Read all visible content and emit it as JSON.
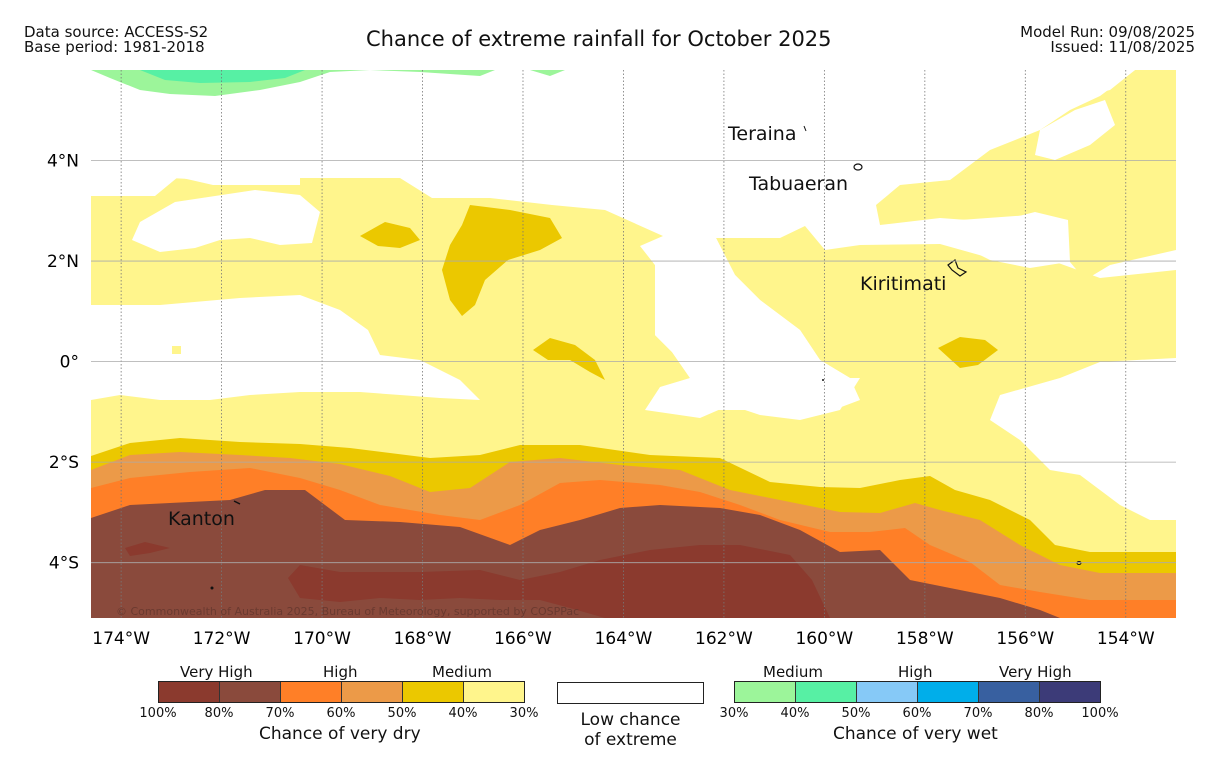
{
  "header": {
    "data_source": "Data source: ACCESS-S2",
    "base_period": "Base period: 1981-2018",
    "title": "Chance of extreme rainfall for October 2025",
    "model_run": "Model Run: 09/08/2025",
    "issued": "Issued: 11/08/2025"
  },
  "map": {
    "lon_range": [
      -174.6,
      -153
    ],
    "lat_range": [
      -5.1,
      5.8
    ],
    "lon_ticks": [
      "174°W",
      "172°W",
      "170°W",
      "168°W",
      "166°W",
      "164°W",
      "162°W",
      "160°W",
      "158°W",
      "156°W",
      "154°W"
    ],
    "lon_values": [
      -174,
      -172,
      -170,
      -168,
      -166,
      -164,
      -162,
      -160,
      -158,
      -156,
      -154
    ],
    "lat_ticks": [
      "4°N",
      "2°N",
      "0°",
      "2°S",
      "4°S"
    ],
    "lat_values": [
      4,
      2,
      0,
      -2,
      -4
    ],
    "places": [
      "Teraina",
      "Tabuaeran",
      "Kiritimati",
      "Kanton"
    ],
    "copyright": "© Commonwealth of Australia 2025, Bureau of Meteorology, supported by COSPPac",
    "colors": {
      "dry_very_high_dark": "#8b3a2e",
      "dry_very_high": "#8a4a3c",
      "dry_high": "#ff7f27",
      "dry_high_light": "#ec9a48",
      "dry_medium": "#ebc800",
      "dry_medium_light": "#fff58c",
      "wet_medium_light": "#9cf59a",
      "wet_medium": "#57f0a4",
      "background": "#ffffff"
    }
  },
  "legend": {
    "dry": {
      "labels": [
        "Very High",
        "High",
        "Medium"
      ],
      "ticks": [
        "100%",
        "80%",
        "70%",
        "60%",
        "50%",
        "40%",
        "30%"
      ],
      "colors": [
        "#8b3a2e",
        "#8a4a3c",
        "#ff7f27",
        "#ec9a48",
        "#ebc800",
        "#fff58c"
      ],
      "caption": "Chance of very dry"
    },
    "low": {
      "line1": "Low chance",
      "line2": "of extreme"
    },
    "wet": {
      "labels": [
        "Medium",
        "High",
        "Very High"
      ],
      "ticks": [
        "30%",
        "40%",
        "50%",
        "60%",
        "70%",
        "80%",
        "100%"
      ],
      "colors": [
        "#9cf59a",
        "#57f0a4",
        "#86c9f7",
        "#00aeea",
        "#3860a0",
        "#3c3b78"
      ],
      "caption": "Chance of very wet"
    }
  }
}
